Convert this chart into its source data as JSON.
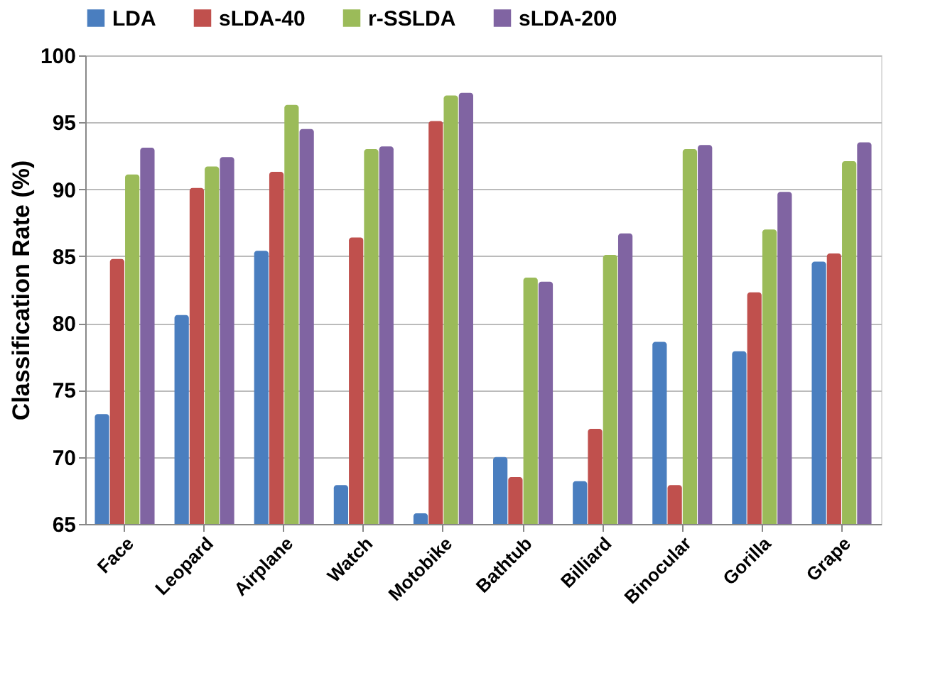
{
  "chart_data": {
    "type": "bar",
    "ylabel": "Classification Rate (%)",
    "categories": [
      "Face",
      "Leopard",
      "Airplane",
      "Watch",
      "Motobike",
      "Bathtub",
      "Billiard",
      "Binocular",
      "Gorilla",
      "Grape"
    ],
    "series": [
      {
        "name": "LDA",
        "color": "#4a7ebf",
        "values": [
          73.2,
          80.6,
          85.4,
          67.9,
          65.8,
          70.0,
          68.2,
          78.6,
          77.9,
          84.6
        ]
      },
      {
        "name": "sLDA-40",
        "color": "#c0504d",
        "values": [
          84.8,
          90.1,
          91.3,
          86.4,
          95.1,
          68.5,
          72.1,
          67.9,
          82.3,
          85.2
        ]
      },
      {
        "name": "r-SSLDA",
        "color": "#9bbb59",
        "values": [
          91.1,
          91.7,
          96.3,
          93.0,
          97.0,
          83.4,
          85.1,
          93.0,
          87.0,
          92.1
        ]
      },
      {
        "name": "sLDA-200",
        "color": "#8064a2",
        "values": [
          93.1,
          92.4,
          94.5,
          93.2,
          97.2,
          83.1,
          86.7,
          93.3,
          89.8,
          93.5
        ]
      }
    ],
    "ylim": [
      65,
      100
    ],
    "yticks": [
      65,
      70,
      75,
      80,
      85,
      90,
      95,
      100
    ],
    "grid": "y",
    "legend": "top"
  }
}
